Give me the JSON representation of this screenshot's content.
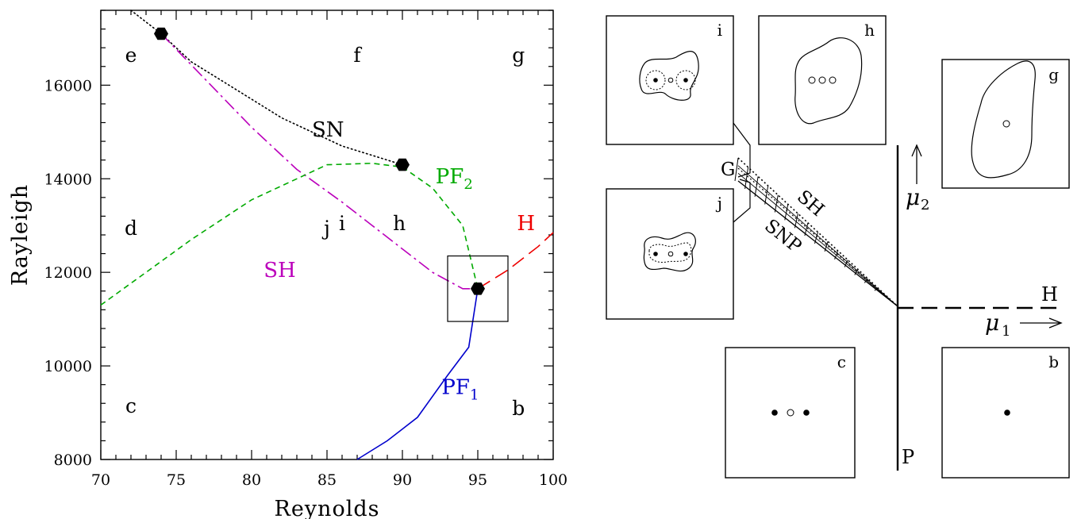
{
  "chart_data": [
    {
      "type": "line",
      "xlabel": "Reynolds",
      "ylabel": "Rayleigh",
      "xlim": [
        70,
        100
      ],
      "ylim": [
        8000,
        17600
      ],
      "x_ticks": [
        "70",
        "75",
        "80",
        "85",
        "90",
        "95",
        "100"
      ],
      "y_ticks": [
        "8000",
        "10000",
        "12000",
        "14000",
        "16000"
      ],
      "grid": false,
      "series": [
        {
          "name": "SN",
          "color": "#000000",
          "style": "dotted",
          "x": [
            72,
            74,
            76,
            79,
            82,
            86,
            90
          ],
          "y": [
            17600,
            17100,
            16500,
            15900,
            15300,
            14700,
            14300
          ]
        },
        {
          "name": "SH",
          "color": "#bb00bb",
          "style": "dash-dot",
          "x": [
            74,
            77,
            80,
            83,
            86,
            88,
            90,
            92,
            94,
            95
          ],
          "y": [
            17100,
            16100,
            15100,
            14200,
            13500,
            13000,
            12500,
            12000,
            11650,
            11650
          ]
        },
        {
          "name": "PF2",
          "color": "#00aa00",
          "style": "dashed",
          "x": [
            70,
            73,
            76,
            80,
            83,
            85,
            88,
            90,
            92,
            94,
            95
          ],
          "y": [
            11300,
            12000,
            12700,
            13550,
            14000,
            14300,
            14330,
            14250,
            13800,
            13000,
            11650
          ]
        },
        {
          "name": "H",
          "color": "#ee0000",
          "style": "long-dash",
          "x": [
            95,
            97,
            99,
            100
          ],
          "y": [
            11650,
            12050,
            12550,
            12850
          ]
        },
        {
          "name": "PF1",
          "color": "#0000cc",
          "style": "solid",
          "x": [
            87,
            89,
            91,
            93,
            94.4,
            95
          ],
          "y": [
            8000,
            8400,
            8900,
            9800,
            10400,
            11650
          ]
        }
      ],
      "markers": [
        {
          "x": 74,
          "y": 17100
        },
        {
          "x": 90,
          "y": 14300
        },
        {
          "x": 95,
          "y": 11650
        }
      ],
      "inset_box": {
        "x0": 93.0,
        "x1": 97.0,
        "y0": 10950,
        "y1": 12350
      },
      "region_labels": [
        {
          "text": "e",
          "x": 72,
          "y": 16500
        },
        {
          "text": "f",
          "x": 87,
          "y": 16500
        },
        {
          "text": "g",
          "x": 97.7,
          "y": 16500
        },
        {
          "text": "d",
          "x": 72,
          "y": 12800
        },
        {
          "text": "j",
          "x": 85,
          "y": 12800
        },
        {
          "text": "i",
          "x": 86,
          "y": 12900
        },
        {
          "text": "h",
          "x": 89.8,
          "y": 12900
        },
        {
          "text": "c",
          "x": 72,
          "y": 9000
        },
        {
          "text": "b",
          "x": 97.7,
          "y": 8950
        }
      ],
      "curve_labels": [
        {
          "text": "SN",
          "x": 84,
          "y": 14900,
          "color": "#000000"
        },
        {
          "text": "PF",
          "sub": "2",
          "x": 92.2,
          "y": 13900,
          "color": "#00aa00"
        },
        {
          "text": "H",
          "x": 97.6,
          "y": 12900,
          "color": "#ee0000"
        },
        {
          "text": "SH",
          "x": 80.8,
          "y": 11900,
          "color": "#bb00bb"
        },
        {
          "text": "PF",
          "sub": "1",
          "x": 92.6,
          "y": 9400,
          "color": "#0000cc"
        }
      ]
    }
  ],
  "diagram": {
    "labels": {
      "G": "G",
      "SH": "SH",
      "SNP": "SNP",
      "mu2": "μ",
      "mu2_sub": "2",
      "mu1": "μ",
      "mu1_sub": "1",
      "H": "H",
      "P": "P"
    },
    "panels": [
      "i",
      "h",
      "g",
      "j",
      "c",
      "b"
    ]
  }
}
